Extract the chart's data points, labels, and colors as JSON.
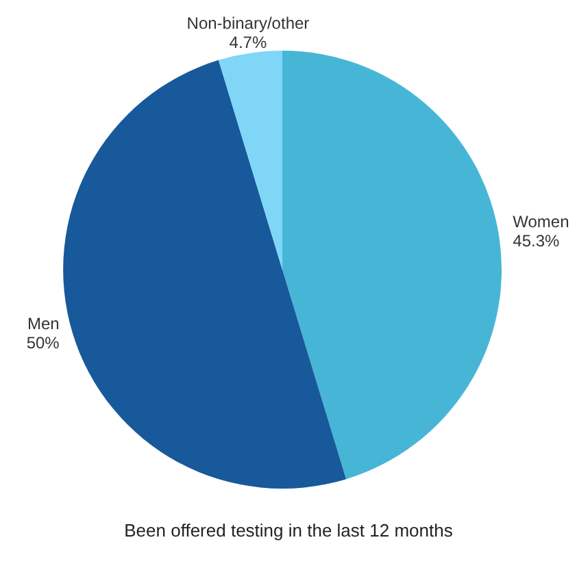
{
  "chart_data": {
    "type": "pie",
    "title": "Been offered testing in the last 12 months",
    "categories": [
      "Women",
      "Men",
      "Non-binary/other"
    ],
    "values": [
      45.3,
      50,
      4.7
    ],
    "value_labels": [
      "45.3%",
      "50%",
      "4.7%"
    ],
    "colors": [
      "#47b6d6",
      "#17599b",
      "#7fd6f7"
    ],
    "legend": false
  }
}
